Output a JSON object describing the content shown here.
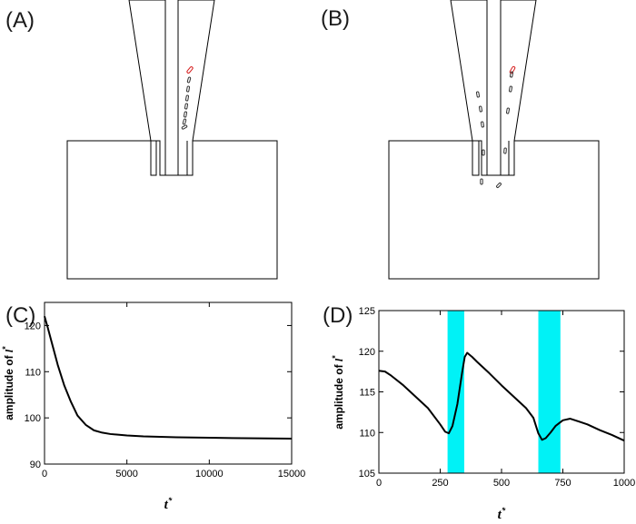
{
  "panels": {
    "a": {
      "label": "(A)"
    },
    "b": {
      "label": "(B)"
    },
    "c": {
      "label": "(C)"
    },
    "d": {
      "label": "(D)"
    }
  },
  "colors": {
    "curve": "#000000",
    "highlight": "#00f2f6",
    "particle_red": "#d62020"
  },
  "chart_data": [
    {
      "panel": "(C)",
      "type": "line",
      "title": "",
      "xlabel": "t*",
      "ylabel": "amplitude of l*",
      "xlim": [
        0,
        15000
      ],
      "ylim": [
        90,
        125
      ],
      "xticks": [
        0,
        5000,
        10000,
        15000
      ],
      "yticks": [
        90,
        100,
        110,
        120
      ],
      "series": [
        {
          "x": [
            0,
            200,
            500,
            800,
            1200,
            1600,
            2000,
            2500,
            3000,
            3500,
            4000,
            5000,
            6000,
            8000,
            10000,
            12000,
            15000
          ],
          "y": [
            122,
            119.5,
            115.5,
            111.5,
            107,
            103.5,
            100.5,
            98.5,
            97.3,
            96.8,
            96.5,
            96.2,
            96.0,
            95.8,
            95.7,
            95.6,
            95.5
          ]
        }
      ]
    },
    {
      "panel": "(D)",
      "type": "line",
      "title": "",
      "xlabel": "t*",
      "ylabel": "amplitude of l*",
      "xlim": [
        0,
        1000
      ],
      "ylim": [
        105,
        125
      ],
      "xticks": [
        0,
        250,
        500,
        750,
        1000
      ],
      "yticks": [
        105,
        110,
        115,
        120,
        125
      ],
      "shaded_intervals": [
        [
          280,
          348
        ],
        [
          650,
          740
        ]
      ],
      "series": [
        {
          "x": [
            0,
            25,
            50,
            100,
            150,
            200,
            250,
            270,
            285,
            300,
            320,
            340,
            350,
            360,
            380,
            400,
            450,
            500,
            550,
            600,
            630,
            650,
            665,
            680,
            700,
            720,
            750,
            780,
            800,
            850,
            900,
            950,
            1000
          ],
          "y": [
            117.6,
            117.5,
            117.0,
            115.8,
            114.4,
            113.0,
            111.0,
            110.1,
            109.9,
            110.8,
            113.5,
            117.5,
            119.3,
            119.8,
            119.3,
            118.7,
            117.3,
            115.8,
            114.4,
            113.0,
            111.8,
            109.9,
            109.1,
            109.3,
            110.0,
            110.8,
            111.5,
            111.7,
            111.5,
            111.0,
            110.3,
            109.7,
            109.0
          ]
        }
      ]
    }
  ]
}
